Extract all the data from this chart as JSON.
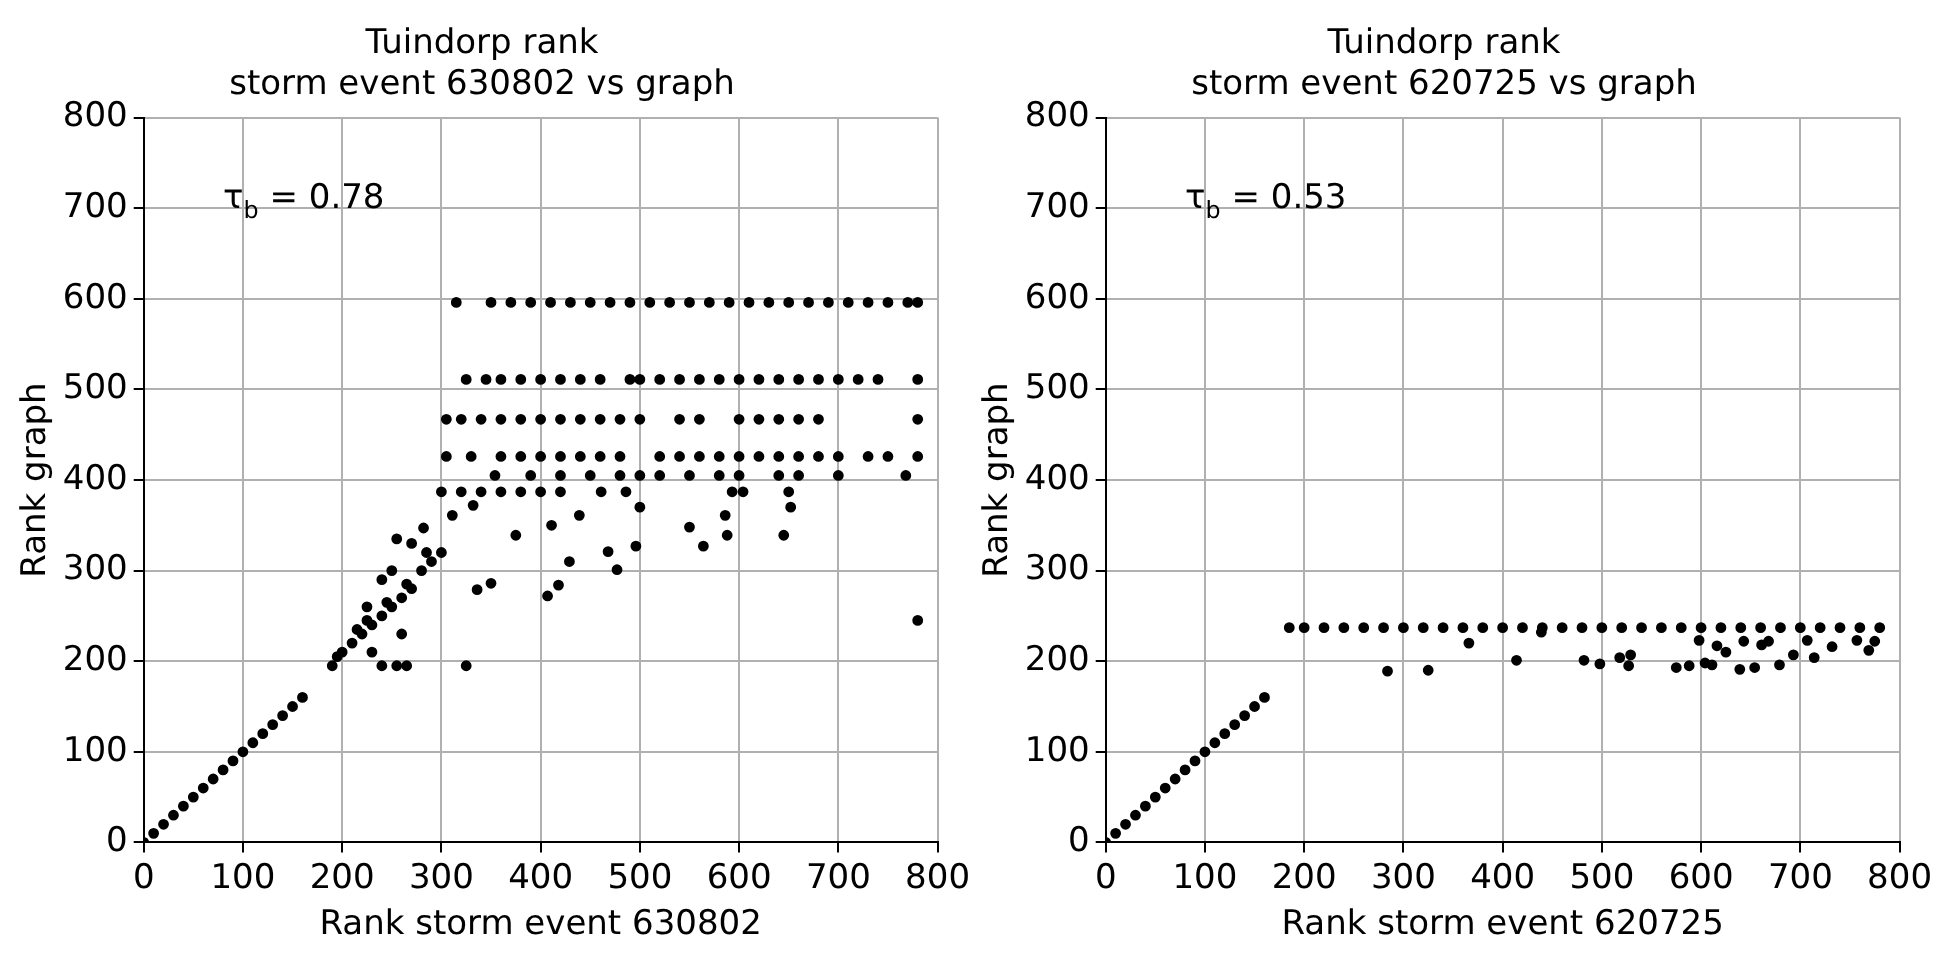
{
  "chart_data": [
    {
      "type": "scatter",
      "title": "Tuindorp rank",
      "subtitle": "storm event 630802 vs graph",
      "xlabel": "Rank storm event 630802",
      "ylabel": "Rank graph",
      "annotations": [
        "τ$_{b}$ = 0.78"
      ],
      "xlim": [
        0,
        800
      ],
      "ylim": [
        0,
        800
      ],
      "xticks": [
        0,
        100,
        200,
        300,
        400,
        500,
        600,
        700,
        800
      ],
      "yticks": [
        0,
        100,
        200,
        300,
        400,
        500,
        600,
        700,
        800
      ],
      "grid": true,
      "marker": "circle",
      "series": [
        {
          "color": "#000000",
          "x": [
            0,
            10,
            20,
            30,
            40,
            50,
            60,
            70,
            80,
            90,
            100,
            110,
            120,
            130,
            140,
            150,
            160,
            190,
            195,
            200,
            210,
            215,
            220,
            225,
            230,
            240,
            245,
            250,
            260,
            265,
            270,
            280,
            285,
            290,
            300,
            225,
            240,
            250,
            255,
            270,
            230,
            260,
            240,
            255,
            265,
            325,
            407,
            418,
            477,
            550,
            564,
            645,
            588,
            652,
            586,
            496,
            468,
            429,
            411,
            375,
            336,
            350,
            311,
            282,
            332,
            439,
            500,
            780
          ],
          "values": [
            0,
            10,
            20,
            30,
            40,
            50,
            60,
            70,
            80,
            90,
            100,
            110,
            120,
            130,
            140,
            150,
            160,
            195,
            205,
            210,
            220,
            235,
            230,
            245,
            240,
            250,
            265,
            260,
            270,
            285,
            280,
            300,
            320,
            310,
            320,
            260,
            290,
            300,
            335,
            330,
            210,
            230,
            195,
            195,
            195,
            195,
            272,
            284,
            301,
            348,
            327,
            339,
            339,
            370,
            361,
            327,
            321,
            310,
            350,
            339,
            279,
            286,
            361,
            347,
            372,
            361,
            370,
            245
          ]
        },
        {
          "color": "#000000",
          "x": [
            300,
            320,
            340,
            360,
            380,
            400,
            420,
            461,
            486,
            593,
            604,
            650
          ],
          "values": [
            387,
            387,
            387,
            387,
            387,
            387,
            387,
            387,
            387,
            387,
            387,
            387
          ]
        },
        {
          "color": "#000000",
          "x": [
            354,
            390,
            420,
            450,
            480,
            500,
            520,
            550,
            580,
            600,
            640,
            660,
            700,
            768
          ],
          "values": [
            405,
            405,
            405,
            405,
            405,
            405,
            405,
            405,
            405,
            405,
            405,
            405,
            405,
            405
          ]
        },
        {
          "color": "#000000",
          "x": [
            305,
            330,
            360,
            380,
            400,
            420,
            440,
            460,
            480,
            520,
            540,
            560,
            580,
            600,
            620,
            640,
            660,
            680,
            700,
            730,
            750,
            780
          ],
          "values": [
            426,
            426,
            426,
            426,
            426,
            426,
            426,
            426,
            426,
            426,
            426,
            426,
            426,
            426,
            426,
            426,
            426,
            426,
            426,
            426,
            426,
            426
          ]
        },
        {
          "color": "#000000",
          "x": [
            305,
            320,
            340,
            360,
            380,
            400,
            420,
            440,
            460,
            480,
            500,
            540,
            560,
            600,
            620,
            640,
            660,
            680,
            780
          ],
          "values": [
            467,
            467,
            467,
            467,
            467,
            467,
            467,
            467,
            467,
            467,
            467,
            467,
            467,
            467,
            467,
            467,
            467,
            467,
            467
          ]
        },
        {
          "color": "#000000",
          "x": [
            325,
            345,
            360,
            380,
            400,
            420,
            440,
            460,
            490,
            500,
            520,
            540,
            560,
            580,
            600,
            620,
            640,
            660,
            680,
            700,
            720,
            740,
            780
          ],
          "values": [
            511,
            511,
            511,
            511,
            511,
            511,
            511,
            511,
            511,
            511,
            511,
            511,
            511,
            511,
            511,
            511,
            511,
            511,
            511,
            511,
            511,
            511,
            511
          ]
        },
        {
          "color": "#000000",
          "x": [
            315,
            350,
            370,
            390,
            410,
            430,
            450,
            470,
            490,
            510,
            530,
            550,
            570,
            590,
            610,
            630,
            650,
            670,
            690,
            710,
            730,
            750,
            770,
            780
          ],
          "values": [
            596,
            596,
            596,
            596,
            596,
            596,
            596,
            596,
            596,
            596,
            596,
            596,
            596,
            596,
            596,
            596,
            596,
            596,
            596,
            596,
            596,
            596,
            596,
            596
          ]
        }
      ]
    },
    {
      "type": "scatter",
      "title": "Tuindorp rank",
      "subtitle": "storm event 620725 vs graph",
      "xlabel": "Rank storm event 620725",
      "ylabel": "Rank graph",
      "annotations": [
        "τ$_{b}$ = 0.53"
      ],
      "xlim": [
        0,
        800
      ],
      "ylim": [
        0,
        800
      ],
      "xticks": [
        0,
        100,
        200,
        300,
        400,
        500,
        600,
        700,
        800
      ],
      "yticks": [
        0,
        100,
        200,
        300,
        400,
        500,
        600,
        700,
        800
      ],
      "grid": true,
      "marker": "circle",
      "series": [
        {
          "color": "#000000",
          "x": [
            0,
            10,
            20,
            30,
            40,
            50,
            60,
            70,
            80,
            90,
            100,
            110,
            120,
            130,
            140,
            150,
            160
          ],
          "values": [
            0,
            10,
            20,
            30,
            40,
            50,
            60,
            70,
            80,
            90,
            100,
            110,
            120,
            130,
            140,
            150,
            160
          ]
        },
        {
          "color": "#000000",
          "x": [
            185,
            200,
            220,
            240,
            260,
            280,
            300,
            320,
            340,
            360,
            380,
            400,
            420,
            440,
            460,
            480,
            500,
            520,
            540,
            560,
            580,
            600,
            620,
            640,
            660,
            680,
            700,
            720,
            740,
            760,
            780
          ],
          "values": [
            237,
            237,
            237,
            237,
            237,
            237,
            237,
            237,
            237,
            237,
            237,
            237,
            237,
            237,
            237,
            237,
            237,
            237,
            237,
            237,
            237,
            237,
            237,
            237,
            237,
            237,
            237,
            237,
            237,
            237,
            237
          ]
        },
        {
          "color": "#000000",
          "x": [
            284,
            325,
            366,
            414,
            482,
            498,
            518,
            527,
            529,
            575,
            588,
            598,
            604,
            611,
            616,
            625,
            639,
            643,
            654,
            661,
            668,
            679,
            693,
            707,
            714,
            732,
            757,
            769,
            775,
            439
          ],
          "values": [
            189,
            190,
            220,
            201,
            201,
            197,
            204,
            195,
            207,
            193,
            195,
            223,
            198,
            196,
            217,
            210,
            191,
            222,
            193,
            218,
            222,
            196,
            207,
            223,
            204,
            216,
            223,
            212,
            222,
            232
          ]
        }
      ]
    }
  ]
}
